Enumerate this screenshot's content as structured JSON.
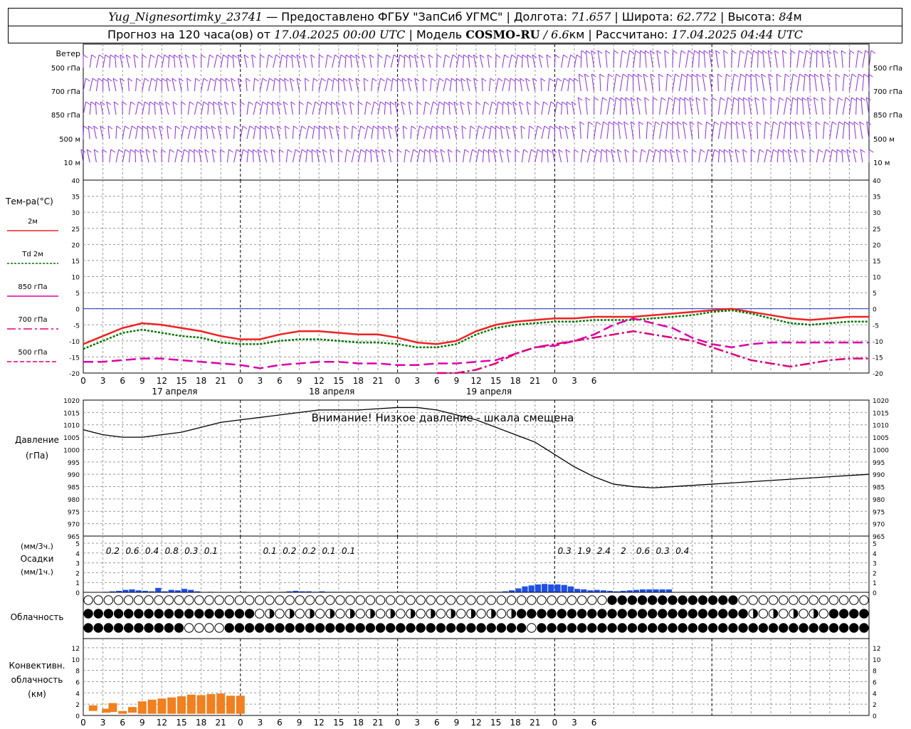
{
  "header": {
    "station": "Yug_Nignesortimky_23741",
    "dash": "—",
    "provider_label": "Предоставлено ФГБУ \"ЗапСиб УГМС\"",
    "lon_label": "Долгота:",
    "lon_value": "71.657",
    "lat_label": "Широта:",
    "lat_value": "62.772",
    "alt_label": "Высота:",
    "alt_value": "84",
    "alt_unit": "м",
    "forecast_label": "Прогноз на 120 часа(ов) от",
    "forecast_start": "17.04.2025 00:00 UTC",
    "model_label": "Модель",
    "model_name": "COSMO-RU",
    "model_res": "/ 6.6",
    "model_res_unit": "км",
    "computed_label": "Рассчитано:",
    "computed_value": "17.04.2025 04:44 UTC"
  },
  "labels": {
    "wind": "Ветер",
    "wind_levels": [
      "500 гПа",
      "700 гПа",
      "850 гПа",
      "500 м",
      "10 м"
    ],
    "temp_title": "Тем-ра(°C)",
    "temp_legend": [
      "2м",
      "Td  2м",
      "850 гПа",
      "700 гПа",
      "500 гПа"
    ],
    "pressure_title": "Давление",
    "pressure_unit": "(гПа)",
    "pressure_warning": "Внимание! Низкое давление - шкала смещена",
    "precip_unit3": "(мм/3ч.)",
    "precip_title": "Осадки",
    "precip_unit1": "(мм/1ч.)",
    "cloud_title": "Облачность",
    "conv_title1": "Конвективн.",
    "conv_title2": "облачность",
    "conv_unit": "(км)",
    "days": [
      "17 апреля",
      "18 апреля",
      "19 апреля"
    ]
  },
  "colors": {
    "t2m": "#ee2222",
    "td2m": "#007700",
    "t850": "#dd00aa",
    "t700": "#dd0077",
    "t500": "#dd0077",
    "wind": "#8a2be2",
    "precip": "#1e4fe6",
    "conv": "#f08020",
    "zero_line": "#2233cc"
  },
  "chart_data": [
    {
      "type": "line",
      "title": "Тем-ра(°C)",
      "x_hours": [
        0,
        3,
        6,
        9,
        12,
        15,
        18,
        21,
        24,
        27,
        30,
        33,
        36,
        39,
        42,
        45,
        48,
        51,
        54,
        57,
        60,
        63,
        66,
        69,
        72,
        75,
        78,
        81,
        84,
        87,
        90,
        93,
        96,
        99,
        102,
        105,
        108,
        111,
        114,
        117,
        120
      ],
      "x_tick_labels": [
        "0",
        "3",
        "6",
        "9",
        "12",
        "15",
        "18",
        "21",
        "0",
        "3",
        "6",
        "9",
        "12",
        "15",
        "18",
        "21",
        "0",
        "3",
        "6",
        "9",
        "12",
        "15",
        "18",
        "21",
        "0",
        "3",
        "6"
      ],
      "ylim": [
        -20,
        40
      ],
      "yticks": [
        -20,
        -15,
        -10,
        -5,
        0,
        5,
        10,
        15,
        20,
        25,
        30,
        35,
        40
      ],
      "series": [
        {
          "name": "2м",
          "values": [
            -11,
            -8.5,
            -6,
            -4.5,
            -5,
            -6,
            -7,
            -8.5,
            -9.5,
            -9.5,
            -8,
            -7,
            -7,
            -7.5,
            -8,
            -8,
            -9,
            -10.5,
            -11,
            -10,
            -7,
            -5,
            -4,
            -3.5,
            -3,
            -3,
            -2.5,
            -2.5,
            -2.5,
            -2,
            -1.5,
            -1,
            -0.5,
            0,
            -1,
            -2,
            -3,
            -3.5,
            -3,
            -2.5,
            -2.5
          ]
        },
        {
          "name": "Td  2м",
          "values": [
            -12.5,
            -10,
            -7.5,
            -6.5,
            -7.5,
            -8.5,
            -9,
            -10.5,
            -11,
            -11,
            -10,
            -9.5,
            -9.5,
            -10,
            -10.5,
            -10.5,
            -11,
            -12,
            -12,
            -11,
            -8,
            -6,
            -5,
            -4.5,
            -4,
            -4,
            -3.5,
            -3.5,
            -3.5,
            -3,
            -2.5,
            -2,
            -1,
            -0.5,
            -1.5,
            -3,
            -4.5,
            -5,
            -4.5,
            -4,
            -4
          ]
        },
        {
          "name": "850 гПа",
          "values": [
            -16.5,
            -16.5,
            -16,
            -15.5,
            -15.5,
            -16,
            -16.5,
            -17,
            -17.5,
            -18.5,
            -17.5,
            -17,
            -16.5,
            -16.5,
            -17,
            -17,
            -17.5,
            -17.5,
            -17,
            -17,
            -16.5,
            -16,
            -14,
            -12,
            -11.5,
            -10,
            -8,
            -5,
            -3,
            -4.5,
            -6,
            -9,
            -11,
            -12,
            -11,
            -10.5,
            -10.5,
            -10.5,
            -10.5,
            -10.5,
            -10.5
          ]
        },
        {
          "name": "700 гПа",
          "values": [
            null,
            null,
            null,
            null,
            null,
            null,
            null,
            null,
            null,
            null,
            null,
            null,
            null,
            null,
            null,
            null,
            null,
            null,
            -20.5,
            -20,
            -19,
            -17,
            -14,
            -12,
            -11,
            -10,
            -9,
            -8,
            -7,
            -8,
            -9,
            -10,
            -12,
            -14,
            -16,
            -17,
            -18,
            -17,
            -16,
            -15.5,
            -15.5
          ]
        },
        {
          "name": "500 гПа",
          "values": []
        }
      ]
    },
    {
      "type": "line",
      "title": "Давление",
      "ylabel": "(гПа)",
      "x_hours": [
        0,
        3,
        6,
        9,
        12,
        15,
        18,
        21,
        24,
        27,
        30,
        33,
        36,
        39,
        42,
        45,
        48,
        51,
        54,
        57,
        60,
        63,
        66,
        69,
        72,
        75,
        78,
        81,
        84,
        87,
        90,
        93,
        96,
        99,
        102,
        105,
        108,
        111,
        114,
        117,
        120
      ],
      "ylim": [
        965,
        1020
      ],
      "yticks": [
        965,
        970,
        975,
        980,
        985,
        990,
        995,
        1000,
        1005,
        1010,
        1015,
        1020
      ],
      "series": [
        {
          "name": "Давление",
          "values": [
            1008,
            1006,
            1005,
            1005,
            1006,
            1007,
            1009,
            1011,
            1012,
            1013,
            1014,
            1015,
            1016,
            1016,
            1016,
            1016.5,
            1017,
            1017,
            1016,
            1014,
            1012,
            1009,
            1006,
            1003,
            998,
            993,
            989,
            986,
            985,
            984.5,
            985,
            985.5,
            986,
            986.5,
            987,
            987.5,
            988,
            988.5,
            989,
            989.5,
            990
          ]
        }
      ]
    },
    {
      "type": "bar",
      "title": "Осадки",
      "ylabel": "(мм/1ч.)",
      "ylim": [
        0,
        5
      ],
      "yticks": [
        0,
        1,
        2,
        3,
        4,
        5
      ],
      "labels_3h": [
        {
          "hour": 4.5,
          "text": "0.2"
        },
        {
          "hour": 7.5,
          "text": "0.6"
        },
        {
          "hour": 10.5,
          "text": "0.4"
        },
        {
          "hour": 13.5,
          "text": "0.8"
        },
        {
          "hour": 16.5,
          "text": "0.3"
        },
        {
          "hour": 19.5,
          "text": "0.1"
        },
        {
          "hour": 28.5,
          "text": "0.1"
        },
        {
          "hour": 31.5,
          "text": "0.2"
        },
        {
          "hour": 34.5,
          "text": "0.2"
        },
        {
          "hour": 37.5,
          "text": "0.1"
        },
        {
          "hour": 40.5,
          "text": "0.1"
        },
        {
          "hour": 73.5,
          "text": "0.3"
        },
        {
          "hour": 76.5,
          "text": "1.9"
        },
        {
          "hour": 79.5,
          "text": "2.4"
        },
        {
          "hour": 82.5,
          "text": "2"
        },
        {
          "hour": 85.5,
          "text": "0.6"
        },
        {
          "hour": 88.5,
          "text": "0.3"
        },
        {
          "hour": 91.5,
          "text": "0.4"
        }
      ],
      "hourly_mm": [
        0,
        0,
        0,
        0.05,
        0.1,
        0.15,
        0.25,
        0.3,
        0.2,
        0.15,
        0.1,
        0.45,
        0.1,
        0.25,
        0.2,
        0.35,
        0.25,
        0.1,
        0,
        0.05,
        0,
        0,
        0,
        0,
        0.05,
        0,
        0,
        0,
        0.05,
        0,
        0.05,
        0.1,
        0.15,
        0.1,
        0.1,
        0.05,
        0.1,
        0.05,
        0.05,
        0.05,
        0.05,
        0.05,
        0,
        0,
        0,
        0,
        0,
        0,
        0.05,
        0,
        0,
        0,
        0,
        0,
        0,
        0,
        0,
        0,
        0,
        0,
        0,
        0,
        0.05,
        0.05,
        0.1,
        0.2,
        0.4,
        0.6,
        0.7,
        0.8,
        0.85,
        0.8,
        0.8,
        0.75,
        0.6,
        0.35,
        0.3,
        0.2,
        0.25,
        0.2,
        0.15,
        0.1,
        0.15,
        0.2,
        0.25,
        0.3,
        0.3,
        0.3,
        0.3,
        0.3
      ]
    },
    {
      "type": "bar",
      "title": "Конвективн. облачность",
      "ylabel": "(км)",
      "ylim": [
        0,
        13
      ],
      "yticks": [
        0,
        2,
        4,
        6,
        8,
        10,
        12
      ],
      "bars": [
        {
          "hour": 1.5,
          "bottom": 0.8,
          "top": 1.8
        },
        {
          "hour": 3.5,
          "bottom": 0.5,
          "top": 1.2
        },
        {
          "hour": 4.5,
          "bottom": 0.6,
          "top": 2.2
        },
        {
          "hour": 6,
          "bottom": 0.3,
          "top": 0.8
        },
        {
          "hour": 7.5,
          "bottom": 0.5,
          "top": 1.5
        },
        {
          "hour": 9,
          "bottom": 0.3,
          "top": 2.5
        },
        {
          "hour": 10.5,
          "bottom": 0.3,
          "top": 2.8
        },
        {
          "hour": 12,
          "bottom": 0.3,
          "top": 3.0
        },
        {
          "hour": 13.5,
          "bottom": 0.3,
          "top": 3.2
        },
        {
          "hour": 15,
          "bottom": 0.3,
          "top": 3.4
        },
        {
          "hour": 16.5,
          "bottom": 0.3,
          "top": 3.7
        },
        {
          "hour": 18,
          "bottom": 0.3,
          "top": 3.6
        },
        {
          "hour": 19.5,
          "bottom": 0.3,
          "top": 3.8
        },
        {
          "hour": 21,
          "bottom": 0.3,
          "top": 3.9
        },
        {
          "hour": 22.5,
          "bottom": 0.3,
          "top": 3.5
        },
        {
          "hour": 24,
          "bottom": 0.3,
          "top": 3.5
        }
      ]
    }
  ]
}
